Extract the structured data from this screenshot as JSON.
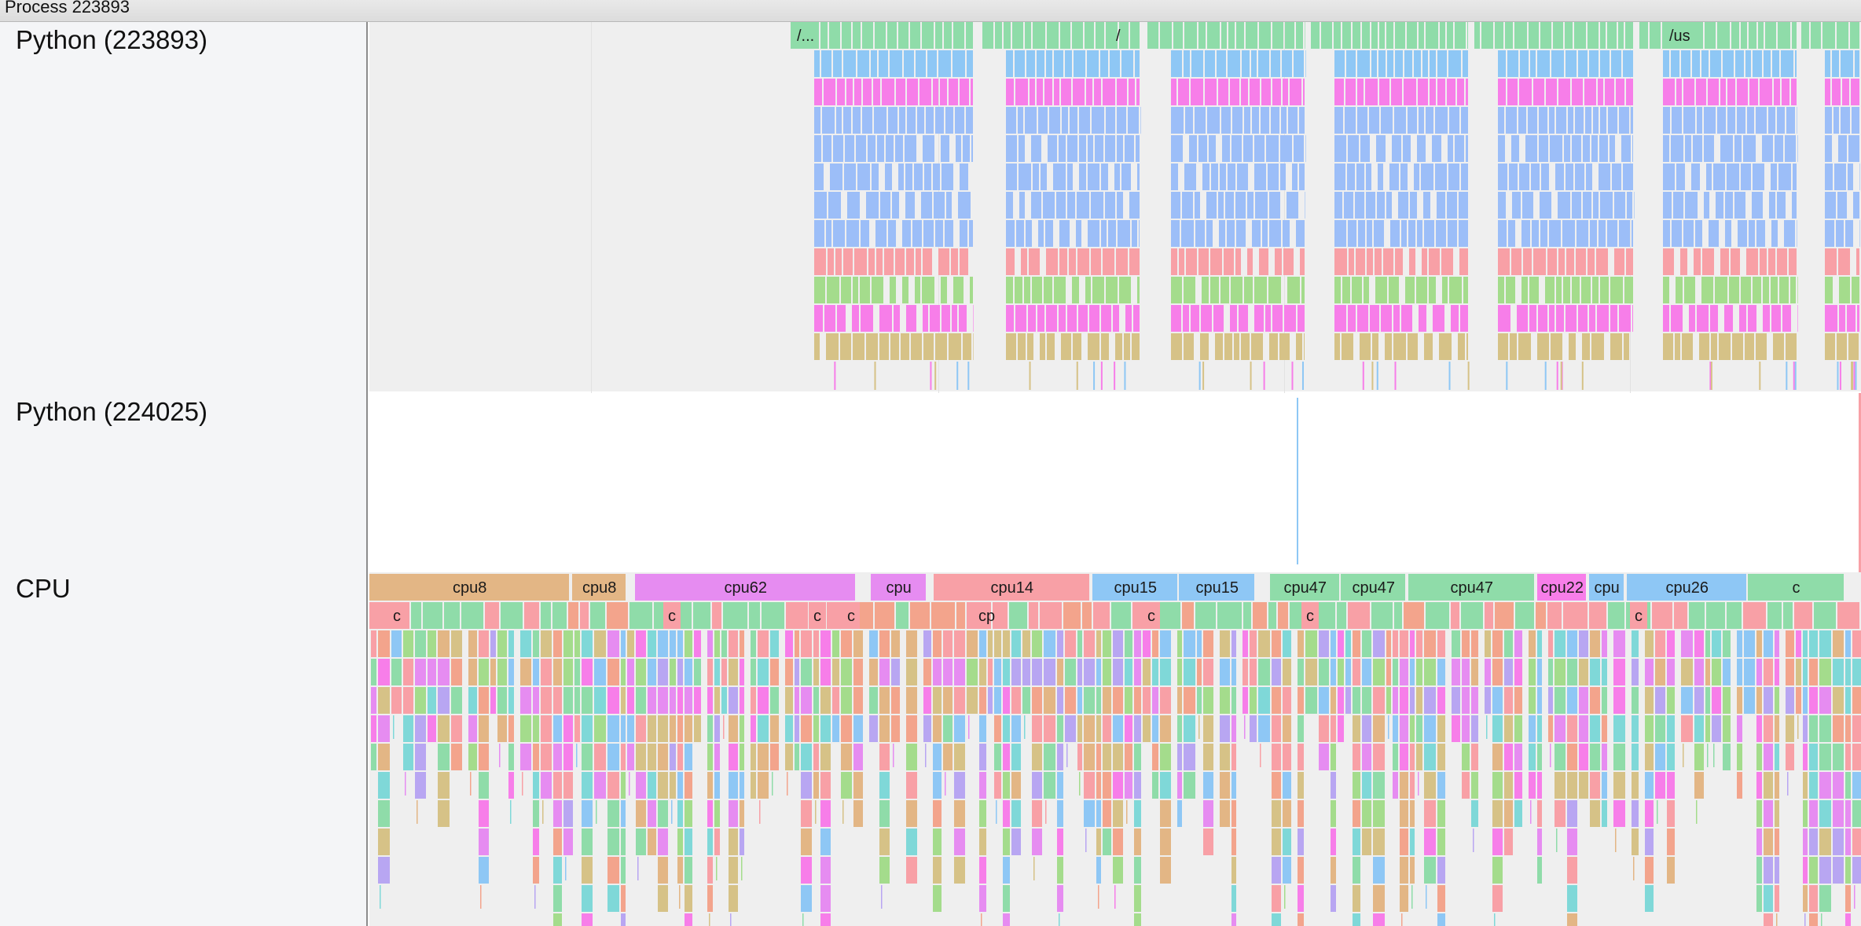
{
  "window": {
    "title": "Process 223893"
  },
  "tracks": [
    {
      "id": "py1",
      "label": "Python (223893)"
    },
    {
      "id": "py2",
      "label": "Python (224025)"
    },
    {
      "id": "cpu",
      "label": "CPU"
    }
  ],
  "py1_labels": [
    "/...",
    "/",
    "/us"
  ],
  "cpu_labels": [
    "cpu8",
    "cpu8",
    "cpu62",
    "cpu",
    "cpu14",
    "cpu15",
    "cpu15",
    "cpu47",
    "cpu47",
    "cpu47",
    "cpu22",
    "cpu",
    "cpu26",
    "c"
  ],
  "cpu_sublabels": [
    "c",
    "c",
    "c",
    "c",
    "cp",
    "c",
    "c",
    "c"
  ],
  "colors": {
    "green": "#8fdca9",
    "blue": "#8ec7f5",
    "blue2": "#9cbef8",
    "magenta": "#f77ee9",
    "pink": "#f8a0a6",
    "olive": "#d6c287",
    "tan": "#e3b685",
    "violet": "#e68cf1",
    "lavender": "#b8a6f2",
    "teal": "#7fd8d8",
    "salmon": "#f3a48c",
    "lightgreen": "#a4dc8c",
    "gray_bg": "#efefef"
  }
}
